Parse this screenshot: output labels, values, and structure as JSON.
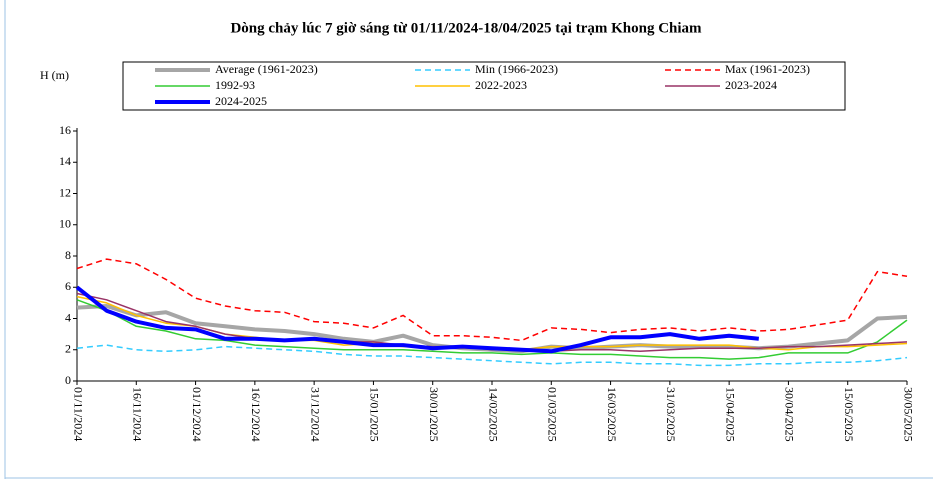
{
  "chart_data": {
    "type": "line",
    "title": "Dòng chảy lúc 7 giờ sáng từ 01/11/2024-18/04/2025 tại trạm Khong Chiam",
    "y_label": "H (m)",
    "categories": [
      "01/11/2024",
      null,
      "16/11/2024",
      null,
      "01/12/2024",
      null,
      "16/12/2024",
      null,
      "31/12/2024",
      null,
      "15/01/2025",
      null,
      "30/01/2025",
      null,
      "14/02/2025",
      null,
      "01/03/2025",
      null,
      "16/03/2025",
      null,
      "31/03/2025",
      null,
      "15/04/2025",
      null,
      "30/04/2025",
      null,
      "15/05/2025",
      null,
      "30/05/2025"
    ],
    "ylim": [
      0,
      16
    ],
    "yticks": [
      0,
      2,
      4,
      6,
      8,
      10,
      12,
      14,
      16
    ],
    "grid": false,
    "series": [
      {
        "name": "Average (1961-2023)",
        "color": "#a6a6a6",
        "width": 4,
        "dash": false,
        "values": [
          4.7,
          4.8,
          4.2,
          4.4,
          3.7,
          3.5,
          3.3,
          3.2,
          3.0,
          2.7,
          2.5,
          2.9,
          2.3,
          2.1,
          2.0,
          1.9,
          2.2,
          2.1,
          2.2,
          2.3,
          2.2,
          2.2,
          2.2,
          2.1,
          2.2,
          2.4,
          2.6,
          4.0,
          4.1
        ]
      },
      {
        "name": "Min (1966-2023)",
        "color": "#33ccff",
        "width": 1.5,
        "dash": true,
        "values": [
          2.1,
          2.3,
          2.0,
          1.9,
          2.0,
          2.2,
          2.1,
          2.0,
          1.9,
          1.7,
          1.6,
          1.6,
          1.5,
          1.4,
          1.3,
          1.2,
          1.1,
          1.2,
          1.2,
          1.1,
          1.1,
          1.0,
          1.0,
          1.1,
          1.1,
          1.2,
          1.2,
          1.3,
          1.5
        ]
      },
      {
        "name": "Max (1961-2023)",
        "color": "#ff0000",
        "width": 1.5,
        "dash": true,
        "values": [
          7.2,
          7.8,
          7.5,
          6.5,
          5.3,
          4.8,
          4.5,
          4.4,
          3.8,
          3.7,
          3.4,
          4.2,
          2.9,
          2.9,
          2.8,
          2.6,
          3.4,
          3.3,
          3.1,
          3.3,
          3.4,
          3.2,
          3.4,
          3.2,
          3.3,
          3.6,
          3.9,
          7.0,
          6.7
        ]
      },
      {
        "name": "1992-93",
        "color": "#33cc33",
        "width": 1.5,
        "dash": false,
        "values": [
          5.2,
          4.5,
          3.5,
          3.2,
          2.7,
          2.6,
          2.3,
          2.2,
          2.1,
          2.0,
          2.0,
          2.0,
          1.9,
          1.8,
          1.8,
          1.7,
          1.8,
          1.7,
          1.7,
          1.6,
          1.5,
          1.5,
          1.4,
          1.5,
          1.8,
          1.8,
          1.8,
          2.5,
          3.9
        ]
      },
      {
        "name": "2022-2023",
        "color": "#ffc000",
        "width": 1.5,
        "dash": false,
        "values": [
          5.4,
          5.0,
          4.2,
          3.7,
          3.5,
          3.0,
          2.8,
          2.6,
          2.6,
          2.3,
          2.4,
          2.2,
          2.2,
          2.1,
          2.1,
          2.0,
          2.2,
          2.2,
          2.2,
          2.3,
          2.3,
          2.3,
          2.3,
          2.1,
          2.0,
          2.2,
          2.2,
          2.3,
          2.4
        ]
      },
      {
        "name": "2023-2024",
        "color": "#993366",
        "width": 1.5,
        "dash": false,
        "values": [
          5.6,
          5.2,
          4.5,
          3.8,
          3.5,
          3.0,
          2.7,
          2.6,
          2.7,
          2.5,
          2.5,
          2.3,
          2.2,
          2.2,
          2.0,
          2.0,
          1.9,
          2.0,
          2.0,
          1.9,
          2.0,
          2.1,
          2.1,
          2.1,
          2.2,
          2.2,
          2.3,
          2.4,
          2.5
        ]
      },
      {
        "name": "2024-2025",
        "color": "#0000ff",
        "width": 4,
        "dash": false,
        "values": [
          6.0,
          4.5,
          3.8,
          3.4,
          3.3,
          2.7,
          2.7,
          2.6,
          2.7,
          2.5,
          2.3,
          2.3,
          2.1,
          2.2,
          2.1,
          2.0,
          1.9,
          2.3,
          2.8,
          2.8,
          3.0,
          2.7,
          2.9,
          2.7,
          null,
          null,
          null,
          null,
          null
        ]
      }
    ]
  }
}
